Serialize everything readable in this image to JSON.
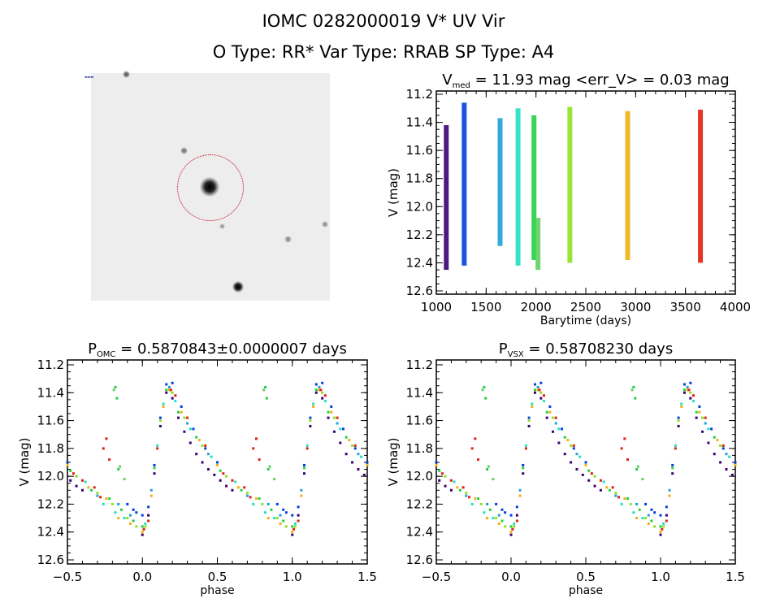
{
  "header": {
    "title": "IOMC 0282000019    V* UV Vir",
    "subtitle": "O Type: RR*  Var Type: RRAB  SP Type: A4"
  },
  "image_panel": {
    "description_labels": []
  },
  "chart_data": [
    {
      "type": "scatter",
      "title": "V_med = 11.93 mag <err_V> = 0.03 mag",
      "title_main": "V",
      "title_sub": "med",
      "title_rest": " = 11.93 mag <err_V> = 0.03 mag",
      "xlabel": "Barytime (days)",
      "ylabel": "V (mag)",
      "xlim": [
        1000,
        4000
      ],
      "ylim": [
        12.6,
        11.2
      ],
      "y_inverted": true,
      "xticks": [
        1000,
        1500,
        2000,
        2500,
        3000,
        3500,
        4000
      ],
      "yticks": [
        11.2,
        11.4,
        11.6,
        11.8,
        12.0,
        12.2,
        12.4,
        12.6
      ],
      "epochs": [
        {
          "barytime": 1100,
          "vmin": 11.42,
          "vmax": 12.45,
          "color": "#3a0070"
        },
        {
          "barytime": 1280,
          "vmin": 11.26,
          "vmax": 12.42,
          "color": "#0040e0"
        },
        {
          "barytime": 1640,
          "vmin": 11.37,
          "vmax": 12.28,
          "color": "#20a0d8"
        },
        {
          "barytime": 1820,
          "vmin": 11.3,
          "vmax": 12.42,
          "color": "#20e0c0"
        },
        {
          "barytime": 1980,
          "vmin": 11.35,
          "vmax": 12.38,
          "color": "#20d040"
        },
        {
          "barytime": 2020,
          "vmin": 12.08,
          "vmax": 12.45,
          "color": "#60d060"
        },
        {
          "barytime": 2340,
          "vmin": 11.29,
          "vmax": 12.4,
          "color": "#90e020"
        },
        {
          "barytime": 2920,
          "vmin": 11.32,
          "vmax": 12.38,
          "color": "#f0b010"
        },
        {
          "barytime": 3650,
          "vmin": 11.31,
          "vmax": 12.4,
          "color": "#e02010"
        }
      ]
    },
    {
      "type": "scatter",
      "title_main": "P",
      "title_sub": "OMC",
      "title_rest": " = 0.5870843±0.0000007 days",
      "xlabel": "phase",
      "ylabel": "V (mag)",
      "xlim": [
        -0.5,
        1.5
      ],
      "ylim": [
        12.6,
        11.2
      ],
      "y_inverted": true,
      "xticks": [
        -0.5,
        0.0,
        0.5,
        1.0,
        1.5
      ],
      "yticks": [
        11.2,
        11.4,
        11.6,
        11.8,
        12.0,
        12.2,
        12.4,
        12.6
      ]
    },
    {
      "type": "scatter",
      "title_main": "P",
      "title_sub": "VSX",
      "title_rest": " = 0.58708230 days",
      "xlabel": "phase",
      "ylabel": "V (mag)",
      "xlim": [
        -0.5,
        1.5
      ],
      "ylim": [
        12.6,
        11.2
      ],
      "y_inverted": true,
      "xticks": [
        -0.5,
        0.0,
        0.5,
        1.0,
        1.5
      ],
      "yticks": [
        11.2,
        11.4,
        11.6,
        11.8,
        12.0,
        12.2,
        12.4,
        12.6
      ]
    }
  ],
  "phase_points": [
    [
      0.0,
      12.42,
      0
    ],
    [
      0.04,
      12.28,
      0
    ],
    [
      0.08,
      11.98,
      0
    ],
    [
      0.12,
      11.64,
      0
    ],
    [
      0.16,
      11.4,
      0
    ],
    [
      0.2,
      11.44,
      0
    ],
    [
      0.24,
      11.58,
      0
    ],
    [
      0.28,
      11.68,
      0
    ],
    [
      0.32,
      11.76,
      0
    ],
    [
      0.36,
      11.84,
      0
    ],
    [
      0.4,
      11.9,
      0
    ],
    [
      0.44,
      11.95,
      0
    ],
    [
      0.48,
      11.99,
      0
    ],
    [
      0.52,
      12.03,
      0
    ],
    [
      0.56,
      12.07,
      0
    ],
    [
      0.6,
      12.1,
      0
    ],
    [
      0.0,
      12.28,
      1
    ],
    [
      0.04,
      12.22,
      1
    ],
    [
      0.08,
      11.92,
      1
    ],
    [
      0.12,
      11.58,
      1
    ],
    [
      0.16,
      11.34,
      1
    ],
    [
      0.2,
      11.33,
      1
    ],
    [
      0.26,
      11.5,
      1
    ],
    [
      0.34,
      11.66,
      1
    ],
    [
      0.42,
      11.8,
      1
    ],
    [
      0.5,
      11.9,
      1
    ],
    [
      0.9,
      12.2,
      1
    ],
    [
      0.94,
      12.24,
      1
    ],
    [
      0.96,
      12.26,
      1
    ],
    [
      0.06,
      12.1,
      2
    ],
    [
      0.18,
      11.36,
      2
    ],
    [
      0.3,
      11.62,
      2
    ],
    [
      0.44,
      11.84,
      2
    ],
    [
      0.7,
      12.14,
      2
    ],
    [
      0.84,
      12.2,
      2
    ],
    [
      0.92,
      12.28,
      2
    ],
    [
      0.02,
      12.34,
      3
    ],
    [
      0.1,
      11.78,
      3
    ],
    [
      0.14,
      11.48,
      3
    ],
    [
      0.22,
      11.46,
      3
    ],
    [
      0.32,
      11.66,
      3
    ],
    [
      0.46,
      11.86,
      3
    ],
    [
      0.62,
      12.04,
      3
    ],
    [
      0.74,
      12.2,
      3
    ],
    [
      0.82,
      12.26,
      3
    ],
    [
      0.88,
      12.3,
      3
    ],
    [
      0.0,
      12.36,
      4
    ],
    [
      0.08,
      11.94,
      4
    ],
    [
      0.16,
      11.38,
      4
    ],
    [
      0.24,
      11.54,
      4
    ],
    [
      0.36,
      11.72,
      4
    ],
    [
      0.52,
      11.96,
      4
    ],
    [
      0.66,
      12.1,
      4
    ],
    [
      0.78,
      12.16,
      4
    ],
    [
      0.86,
      12.24,
      4
    ],
    [
      0.94,
      12.32,
      4
    ],
    [
      0.82,
      11.36,
      4
    ],
    [
      0.83,
      11.44,
      4
    ],
    [
      0.84,
      11.95,
      4
    ],
    [
      0.81,
      11.38,
      5
    ],
    [
      0.85,
      11.93,
      5
    ],
    [
      0.88,
      12.02,
      5
    ],
    [
      0.02,
      12.36,
      6
    ],
    [
      0.12,
      11.6,
      6
    ],
    [
      0.2,
      11.4,
      6
    ],
    [
      0.28,
      11.58,
      6
    ],
    [
      0.4,
      11.78,
      6
    ],
    [
      0.56,
      12.0,
      6
    ],
    [
      0.7,
      12.12,
      6
    ],
    [
      0.8,
      12.2,
      6
    ],
    [
      0.9,
      12.3,
      6
    ],
    [
      0.96,
      12.36,
      6
    ],
    [
      0.0,
      12.4,
      7
    ],
    [
      0.06,
      12.14,
      7
    ],
    [
      0.14,
      11.5,
      7
    ],
    [
      0.18,
      11.38,
      7
    ],
    [
      0.26,
      11.54,
      7
    ],
    [
      0.38,
      11.74,
      7
    ],
    [
      0.5,
      11.92,
      7
    ],
    [
      0.64,
      12.08,
      7
    ],
    [
      0.76,
      12.16,
      7
    ],
    [
      0.84,
      12.3,
      7
    ],
    [
      0.92,
      12.34,
      7
    ],
    [
      0.01,
      12.38,
      8
    ],
    [
      0.04,
      12.32,
      8
    ],
    [
      0.1,
      11.8,
      8
    ],
    [
      0.19,
      11.38,
      8
    ],
    [
      0.22,
      11.42,
      8
    ],
    [
      0.3,
      11.58,
      8
    ],
    [
      0.42,
      11.78,
      8
    ],
    [
      0.54,
      11.98,
      8
    ],
    [
      0.6,
      12.03,
      8
    ],
    [
      0.68,
      12.08,
      8
    ],
    [
      0.72,
      12.15,
      8
    ],
    [
      0.74,
      11.8,
      8
    ],
    [
      0.76,
      11.73,
      8
    ],
    [
      0.78,
      11.88,
      8
    ]
  ]
}
